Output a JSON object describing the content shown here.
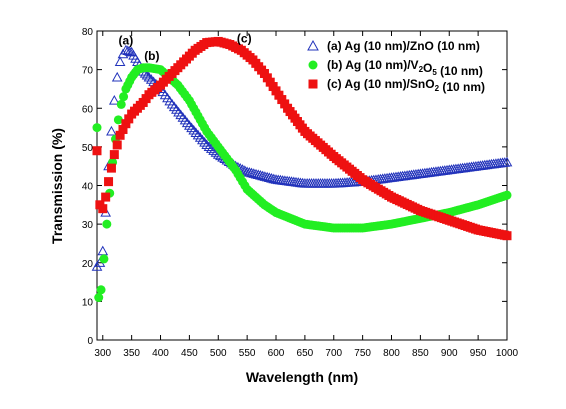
{
  "chart_data": {
    "type": "scatter",
    "xlabel": "Wavelength (nm)",
    "ylabel": "Transmission (%)",
    "xlim": [
      290,
      1000
    ],
    "ylim": [
      0,
      80
    ],
    "xticks": [
      300,
      350,
      400,
      450,
      500,
      550,
      600,
      650,
      700,
      750,
      800,
      850,
      900,
      950,
      1000
    ],
    "yticks": [
      0,
      10,
      20,
      30,
      40,
      50,
      60,
      70,
      80
    ],
    "grid": false,
    "legend_position": "top-right",
    "series": [
      {
        "name": "(a) Ag (10 nm)/ZnO (10 nm)",
        "name_parts": [
          {
            "text": "(a) Ag (10 nm)/ZnO (10 nm)",
            "sub": ""
          }
        ],
        "curve_label": "(a)",
        "marker": "triangle-open",
        "color": "#2233bb",
        "points": [
          [
            290,
            19
          ],
          [
            295,
            20
          ],
          [
            300,
            23
          ],
          [
            305,
            33
          ],
          [
            310,
            45
          ],
          [
            315,
            54
          ],
          [
            320,
            62
          ],
          [
            325,
            68
          ],
          [
            330,
            72
          ],
          [
            335,
            74
          ],
          [
            340,
            75
          ],
          [
            350,
            74.5
          ],
          [
            360,
            72
          ],
          [
            370,
            69.5
          ],
          [
            380,
            68
          ],
          [
            400,
            65
          ],
          [
            420,
            61
          ],
          [
            450,
            55.5
          ],
          [
            480,
            50.5
          ],
          [
            500,
            48
          ],
          [
            530,
            45
          ],
          [
            550,
            43.5
          ],
          [
            600,
            41.5
          ],
          [
            650,
            40.5
          ],
          [
            700,
            40.5
          ],
          [
            750,
            41
          ],
          [
            800,
            42
          ],
          [
            850,
            43
          ],
          [
            900,
            44
          ],
          [
            950,
            45
          ],
          [
            1000,
            46
          ]
        ]
      },
      {
        "name": "(b) Ag (10 nm)/V2O5 (10 nm)",
        "name_parts": [
          {
            "text": "(b) Ag (10 nm)/V",
            "sub": "2"
          },
          {
            "text": "O",
            "sub": "5"
          },
          {
            "text": " (10 nm)",
            "sub": ""
          }
        ],
        "curve_label": "(b)",
        "marker": "circle-filled",
        "color": "#22ee22",
        "points": [
          [
            290,
            55
          ],
          [
            293,
            11
          ],
          [
            297,
            13
          ],
          [
            302,
            21
          ],
          [
            307,
            30
          ],
          [
            312,
            38
          ],
          [
            317,
            46
          ],
          [
            322,
            52
          ],
          [
            327,
            57
          ],
          [
            332,
            61
          ],
          [
            340,
            65
          ],
          [
            350,
            68
          ],
          [
            360,
            70
          ],
          [
            370,
            70.5
          ],
          [
            380,
            70.5
          ],
          [
            400,
            70
          ],
          [
            430,
            66
          ],
          [
            450,
            62
          ],
          [
            480,
            54
          ],
          [
            500,
            50
          ],
          [
            530,
            44
          ],
          [
            550,
            39
          ],
          [
            580,
            35
          ],
          [
            600,
            33
          ],
          [
            650,
            30
          ],
          [
            700,
            29
          ],
          [
            750,
            29
          ],
          [
            800,
            30
          ],
          [
            850,
            31.5
          ],
          [
            900,
            33
          ],
          [
            950,
            35
          ],
          [
            1000,
            37.5
          ]
        ]
      },
      {
        "name": "(c) Ag (10 nm)/SnO2 (10 nm)",
        "name_parts": [
          {
            "text": "(c) Ag (10 nm)/SnO",
            "sub": "2"
          },
          {
            "text": " (10 nm)",
            "sub": ""
          }
        ],
        "curve_label": "(c)",
        "marker": "square-filled",
        "color": "#ee1111",
        "points": [
          [
            290,
            49
          ],
          [
            295,
            35
          ],
          [
            300,
            34
          ],
          [
            305,
            37
          ],
          [
            310,
            41
          ],
          [
            320,
            48
          ],
          [
            330,
            53
          ],
          [
            340,
            56
          ],
          [
            350,
            58.5
          ],
          [
            360,
            60
          ],
          [
            370,
            61.5
          ],
          [
            380,
            63.5
          ],
          [
            400,
            66
          ],
          [
            420,
            69
          ],
          [
            440,
            72
          ],
          [
            460,
            75
          ],
          [
            480,
            77
          ],
          [
            500,
            77.3
          ],
          [
            520,
            76.5
          ],
          [
            540,
            75
          ],
          [
            560,
            72.5
          ],
          [
            580,
            69
          ],
          [
            600,
            64.5
          ],
          [
            620,
            60
          ],
          [
            650,
            54
          ],
          [
            700,
            47.5
          ],
          [
            750,
            41.5
          ],
          [
            800,
            37
          ],
          [
            850,
            33.5
          ],
          [
            900,
            31
          ],
          [
            950,
            28.5
          ],
          [
            1000,
            27
          ]
        ]
      }
    ]
  }
}
